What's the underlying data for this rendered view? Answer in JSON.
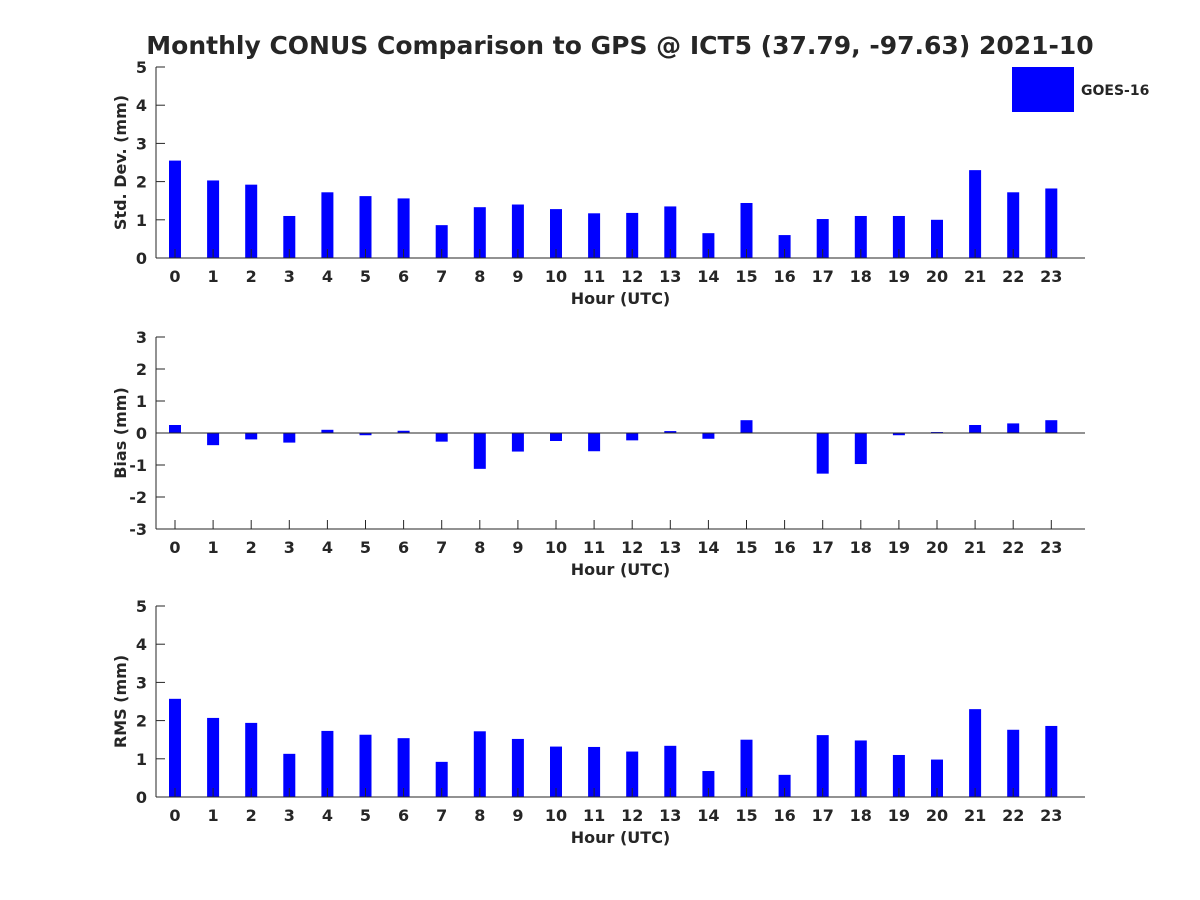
{
  "title": "Monthly CONUS Comparison to GPS @ ICT5 (37.79, -97.63) 2021-10",
  "legend": {
    "label": "GOES-16",
    "color": "#0000ff",
    "placement": "top-right"
  },
  "colors": {
    "bar": "#0000ff",
    "axis": "#262626",
    "background": "#ffffff"
  },
  "chart_data": [
    {
      "type": "bar",
      "xlabel": "Hour (UTC)",
      "ylabel": "Std. Dev. (mm)",
      "ylim": [
        0,
        5
      ],
      "yticks": [
        "0",
        "1",
        "2",
        "3",
        "4",
        "5"
      ],
      "categories": [
        "0",
        "1",
        "2",
        "3",
        "4",
        "5",
        "6",
        "7",
        "8",
        "9",
        "10",
        "11",
        "12",
        "13",
        "14",
        "15",
        "16",
        "17",
        "18",
        "19",
        "20",
        "21",
        "22",
        "23"
      ],
      "series": [
        {
          "name": "GOES-16",
          "values": [
            2.55,
            2.03,
            1.92,
            1.1,
            1.72,
            1.62,
            1.56,
            0.86,
            1.33,
            1.4,
            1.28,
            1.17,
            1.18,
            1.35,
            0.65,
            1.44,
            0.6,
            1.02,
            1.1,
            1.1,
            1.0,
            2.3,
            1.72,
            1.82
          ]
        }
      ],
      "grid": false
    },
    {
      "type": "bar",
      "xlabel": "Hour (UTC)",
      "ylabel": "Bias (mm)",
      "ylim": [
        -3,
        3
      ],
      "yticks": [
        "-3",
        "-2",
        "-1",
        "0",
        "1",
        "2",
        "3"
      ],
      "categories": [
        "0",
        "1",
        "2",
        "3",
        "4",
        "5",
        "6",
        "7",
        "8",
        "9",
        "10",
        "11",
        "12",
        "13",
        "14",
        "15",
        "16",
        "17",
        "18",
        "19",
        "20",
        "21",
        "22",
        "23"
      ],
      "series": [
        {
          "name": "GOES-16",
          "values": [
            0.25,
            -0.38,
            -0.2,
            -0.3,
            0.1,
            -0.07,
            0.07,
            -0.27,
            -1.12,
            -0.58,
            -0.25,
            -0.57,
            -0.23,
            0.06,
            -0.18,
            0.4,
            0.0,
            -1.27,
            -0.97,
            -0.07,
            0.03,
            0.25,
            0.3,
            0.4
          ]
        }
      ],
      "grid": false
    },
    {
      "type": "bar",
      "xlabel": "Hour (UTC)",
      "ylabel": "RMS (mm)",
      "ylim": [
        0,
        5
      ],
      "yticks": [
        "0",
        "1",
        "2",
        "3",
        "4",
        "5"
      ],
      "categories": [
        "0",
        "1",
        "2",
        "3",
        "4",
        "5",
        "6",
        "7",
        "8",
        "9",
        "10",
        "11",
        "12",
        "13",
        "14",
        "15",
        "16",
        "17",
        "18",
        "19",
        "20",
        "21",
        "22",
        "23"
      ],
      "series": [
        {
          "name": "GOES-16",
          "values": [
            2.57,
            2.07,
            1.94,
            1.13,
            1.73,
            1.63,
            1.54,
            0.92,
            1.72,
            1.52,
            1.32,
            1.31,
            1.19,
            1.34,
            0.68,
            1.5,
            0.58,
            1.62,
            1.48,
            1.1,
            0.98,
            2.3,
            1.76,
            1.86
          ]
        }
      ],
      "grid": false
    }
  ]
}
